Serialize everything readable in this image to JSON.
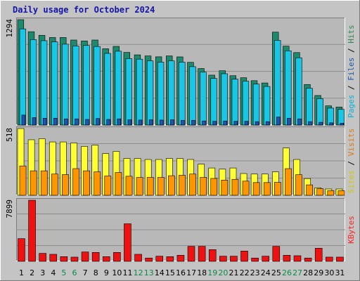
{
  "chart_data": {
    "type": "bar",
    "title": "Daily usage for October 2024",
    "categories": [
      "1",
      "2",
      "3",
      "4",
      "5",
      "6",
      "7",
      "8",
      "9",
      "10",
      "11",
      "12",
      "13",
      "14",
      "15",
      "16",
      "17",
      "18",
      "19",
      "20",
      "21",
      "22",
      "23",
      "24",
      "25",
      "26",
      "27",
      "28",
      "29",
      "30",
      "31"
    ],
    "weekend_days": [
      "5",
      "6",
      "12",
      "13",
      "19",
      "20",
      "26",
      "27"
    ],
    "panels": [
      {
        "id": "top",
        "max_label": "1294",
        "ymax": 1294,
        "legend": [
          {
            "text": "Pages",
            "color": "#00b2e0"
          },
          {
            "text": " / ",
            "color": "#000000"
          },
          {
            "text": "Files",
            "color": "#1b5aa8"
          },
          {
            "text": " / ",
            "color": "#000000"
          },
          {
            "text": "Hits",
            "color": "#2e8b57"
          }
        ],
        "series": [
          {
            "name": "Hits",
            "color": "#1d8a6e",
            "values": [
              1294,
              1146,
              1102,
              1075,
              1075,
              1044,
              1033,
              1044,
              937,
              966,
              892,
              862,
              849,
              838,
              849,
              837,
              770,
              694,
              613,
              667,
              606,
              581,
              545,
              517,
              1141,
              969,
              890,
              498,
              363,
              236,
              221
            ]
          },
          {
            "name": "Files",
            "color": "#19c6e6",
            "values": [
              1181,
              1049,
              1036,
              1021,
              993,
              970,
              977,
              965,
              880,
              907,
              816,
              809,
              788,
              772,
              788,
              772,
              717,
              650,
              572,
              630,
              563,
              539,
              503,
              474,
              1040,
              912,
              826,
              452,
              324,
              208,
              192
            ]
          },
          {
            "name": "Pages",
            "color": "#1d55b5",
            "values": [
              122,
              92,
              84,
              84,
              76,
              76,
              69,
              80,
              69,
              76,
              65,
              61,
              65,
              61,
              65,
              58,
              58,
              50,
              46,
              50,
              46,
              46,
              42,
              42,
              99,
              84,
              76,
              42,
              34,
              27,
              23
            ]
          }
        ]
      },
      {
        "id": "middle",
        "max_label": "518",
        "ymax": 518,
        "legend": [
          {
            "text": "Sites",
            "color": "#d4c800"
          },
          {
            "text": " / ",
            "color": "#000000"
          },
          {
            "text": "Visits",
            "color": "#e07a10"
          }
        ],
        "series": [
          {
            "name": "Sites",
            "color": "#ffff33",
            "values": [
              518,
              431,
              439,
              414,
              414,
              406,
              380,
              389,
              324,
              341,
              286,
              286,
              278,
              278,
              286,
              286,
              278,
              242,
              212,
              203,
              212,
              169,
              165,
              165,
              182,
              367,
              278,
              130,
              58,
              49,
              49
            ]
          },
          {
            "name": "Visits",
            "color": "#ff9500",
            "values": [
              228,
              190,
              190,
              165,
              161,
              207,
              190,
              182,
              150,
              177,
              148,
              139,
              139,
              139,
              152,
              156,
              165,
              139,
              131,
              118,
              124,
              110,
              99,
              99,
              101,
              207,
              160,
              81,
              51,
              36,
              36
            ]
          }
        ]
      },
      {
        "id": "bottom",
        "max_label": "7899",
        "ymax": 7899,
        "legend": [
          {
            "text": "KBytes",
            "color": "#ff2020"
          }
        ],
        "series": [
          {
            "name": "KBytes",
            "color": "#ee1111",
            "values": [
              2934,
              7899,
              1031,
              910,
              607,
              547,
              1213,
              1153,
              607,
              1153,
              4854,
              910,
              425,
              667,
              607,
              789,
              1941,
              1941,
              1517,
              667,
              667,
              1334,
              425,
              667,
              1941,
              789,
              728,
              425,
              1699,
              547,
              547
            ]
          }
        ]
      }
    ]
  }
}
